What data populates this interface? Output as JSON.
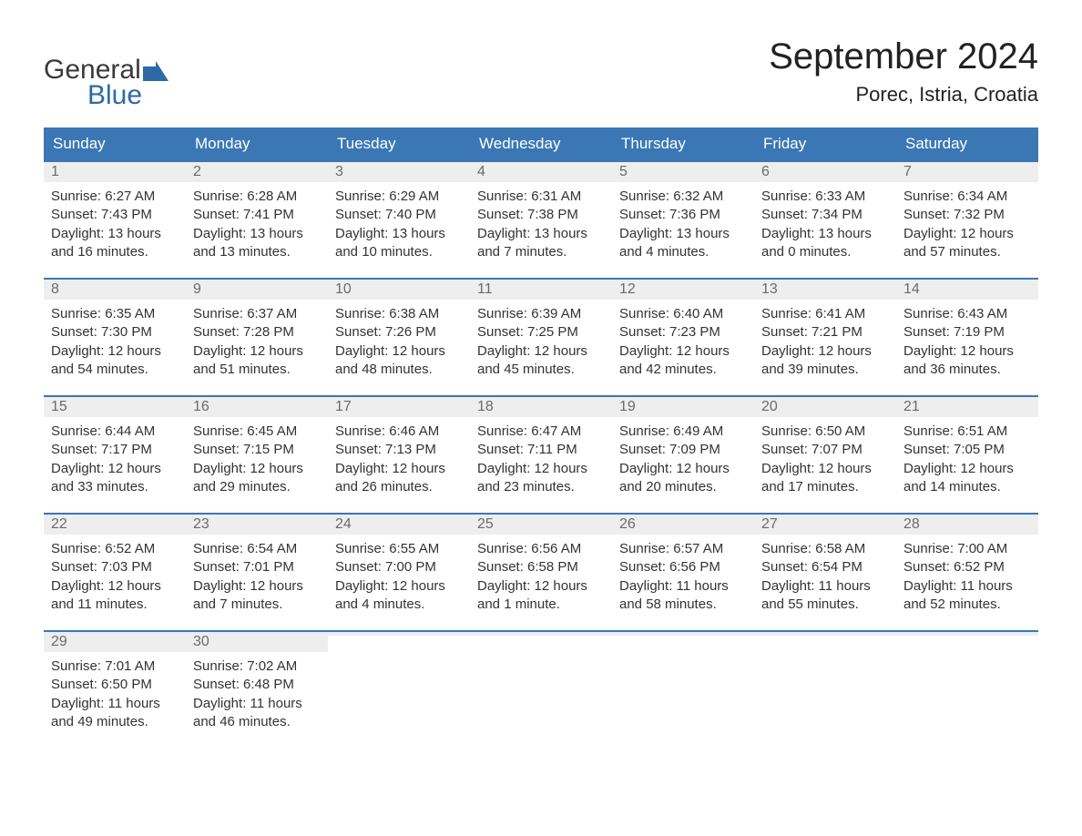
{
  "logo": {
    "text_general": "General",
    "text_blue": "Blue",
    "flag_color": "#2c6aa6"
  },
  "header": {
    "month_title": "September 2024",
    "location": "Porec, Istria, Croatia"
  },
  "colors": {
    "header_bg": "#3b77b5",
    "header_text": "#ffffff",
    "week_border": "#3b77b5",
    "daynum_bg": "#eeeeee",
    "daynum_text": "#6b6b6b",
    "body_text": "#333333",
    "page_bg": "#ffffff"
  },
  "days_of_week": [
    "Sunday",
    "Monday",
    "Tuesday",
    "Wednesday",
    "Thursday",
    "Friday",
    "Saturday"
  ],
  "weeks": [
    [
      {
        "num": "1",
        "sunrise": "Sunrise: 6:27 AM",
        "sunset": "Sunset: 7:43 PM",
        "daylight": "Daylight: 13 hours and 16 minutes."
      },
      {
        "num": "2",
        "sunrise": "Sunrise: 6:28 AM",
        "sunset": "Sunset: 7:41 PM",
        "daylight": "Daylight: 13 hours and 13 minutes."
      },
      {
        "num": "3",
        "sunrise": "Sunrise: 6:29 AM",
        "sunset": "Sunset: 7:40 PM",
        "daylight": "Daylight: 13 hours and 10 minutes."
      },
      {
        "num": "4",
        "sunrise": "Sunrise: 6:31 AM",
        "sunset": "Sunset: 7:38 PM",
        "daylight": "Daylight: 13 hours and 7 minutes."
      },
      {
        "num": "5",
        "sunrise": "Sunrise: 6:32 AM",
        "sunset": "Sunset: 7:36 PM",
        "daylight": "Daylight: 13 hours and 4 minutes."
      },
      {
        "num": "6",
        "sunrise": "Sunrise: 6:33 AM",
        "sunset": "Sunset: 7:34 PM",
        "daylight": "Daylight: 13 hours and 0 minutes."
      },
      {
        "num": "7",
        "sunrise": "Sunrise: 6:34 AM",
        "sunset": "Sunset: 7:32 PM",
        "daylight": "Daylight: 12 hours and 57 minutes."
      }
    ],
    [
      {
        "num": "8",
        "sunrise": "Sunrise: 6:35 AM",
        "sunset": "Sunset: 7:30 PM",
        "daylight": "Daylight: 12 hours and 54 minutes."
      },
      {
        "num": "9",
        "sunrise": "Sunrise: 6:37 AM",
        "sunset": "Sunset: 7:28 PM",
        "daylight": "Daylight: 12 hours and 51 minutes."
      },
      {
        "num": "10",
        "sunrise": "Sunrise: 6:38 AM",
        "sunset": "Sunset: 7:26 PM",
        "daylight": "Daylight: 12 hours and 48 minutes."
      },
      {
        "num": "11",
        "sunrise": "Sunrise: 6:39 AM",
        "sunset": "Sunset: 7:25 PM",
        "daylight": "Daylight: 12 hours and 45 minutes."
      },
      {
        "num": "12",
        "sunrise": "Sunrise: 6:40 AM",
        "sunset": "Sunset: 7:23 PM",
        "daylight": "Daylight: 12 hours and 42 minutes."
      },
      {
        "num": "13",
        "sunrise": "Sunrise: 6:41 AM",
        "sunset": "Sunset: 7:21 PM",
        "daylight": "Daylight: 12 hours and 39 minutes."
      },
      {
        "num": "14",
        "sunrise": "Sunrise: 6:43 AM",
        "sunset": "Sunset: 7:19 PM",
        "daylight": "Daylight: 12 hours and 36 minutes."
      }
    ],
    [
      {
        "num": "15",
        "sunrise": "Sunrise: 6:44 AM",
        "sunset": "Sunset: 7:17 PM",
        "daylight": "Daylight: 12 hours and 33 minutes."
      },
      {
        "num": "16",
        "sunrise": "Sunrise: 6:45 AM",
        "sunset": "Sunset: 7:15 PM",
        "daylight": "Daylight: 12 hours and 29 minutes."
      },
      {
        "num": "17",
        "sunrise": "Sunrise: 6:46 AM",
        "sunset": "Sunset: 7:13 PM",
        "daylight": "Daylight: 12 hours and 26 minutes."
      },
      {
        "num": "18",
        "sunrise": "Sunrise: 6:47 AM",
        "sunset": "Sunset: 7:11 PM",
        "daylight": "Daylight: 12 hours and 23 minutes."
      },
      {
        "num": "19",
        "sunrise": "Sunrise: 6:49 AM",
        "sunset": "Sunset: 7:09 PM",
        "daylight": "Daylight: 12 hours and 20 minutes."
      },
      {
        "num": "20",
        "sunrise": "Sunrise: 6:50 AM",
        "sunset": "Sunset: 7:07 PM",
        "daylight": "Daylight: 12 hours and 17 minutes."
      },
      {
        "num": "21",
        "sunrise": "Sunrise: 6:51 AM",
        "sunset": "Sunset: 7:05 PM",
        "daylight": "Daylight: 12 hours and 14 minutes."
      }
    ],
    [
      {
        "num": "22",
        "sunrise": "Sunrise: 6:52 AM",
        "sunset": "Sunset: 7:03 PM",
        "daylight": "Daylight: 12 hours and 11 minutes."
      },
      {
        "num": "23",
        "sunrise": "Sunrise: 6:54 AM",
        "sunset": "Sunset: 7:01 PM",
        "daylight": "Daylight: 12 hours and 7 minutes."
      },
      {
        "num": "24",
        "sunrise": "Sunrise: 6:55 AM",
        "sunset": "Sunset: 7:00 PM",
        "daylight": "Daylight: 12 hours and 4 minutes."
      },
      {
        "num": "25",
        "sunrise": "Sunrise: 6:56 AM",
        "sunset": "Sunset: 6:58 PM",
        "daylight": "Daylight: 12 hours and 1 minute."
      },
      {
        "num": "26",
        "sunrise": "Sunrise: 6:57 AM",
        "sunset": "Sunset: 6:56 PM",
        "daylight": "Daylight: 11 hours and 58 minutes."
      },
      {
        "num": "27",
        "sunrise": "Sunrise: 6:58 AM",
        "sunset": "Sunset: 6:54 PM",
        "daylight": "Daylight: 11 hours and 55 minutes."
      },
      {
        "num": "28",
        "sunrise": "Sunrise: 7:00 AM",
        "sunset": "Sunset: 6:52 PM",
        "daylight": "Daylight: 11 hours and 52 minutes."
      }
    ],
    [
      {
        "num": "29",
        "sunrise": "Sunrise: 7:01 AM",
        "sunset": "Sunset: 6:50 PM",
        "daylight": "Daylight: 11 hours and 49 minutes."
      },
      {
        "num": "30",
        "sunrise": "Sunrise: 7:02 AM",
        "sunset": "Sunset: 6:48 PM",
        "daylight": "Daylight: 11 hours and 46 minutes."
      },
      {
        "empty": true
      },
      {
        "empty": true
      },
      {
        "empty": true
      },
      {
        "empty": true
      },
      {
        "empty": true
      }
    ]
  ]
}
